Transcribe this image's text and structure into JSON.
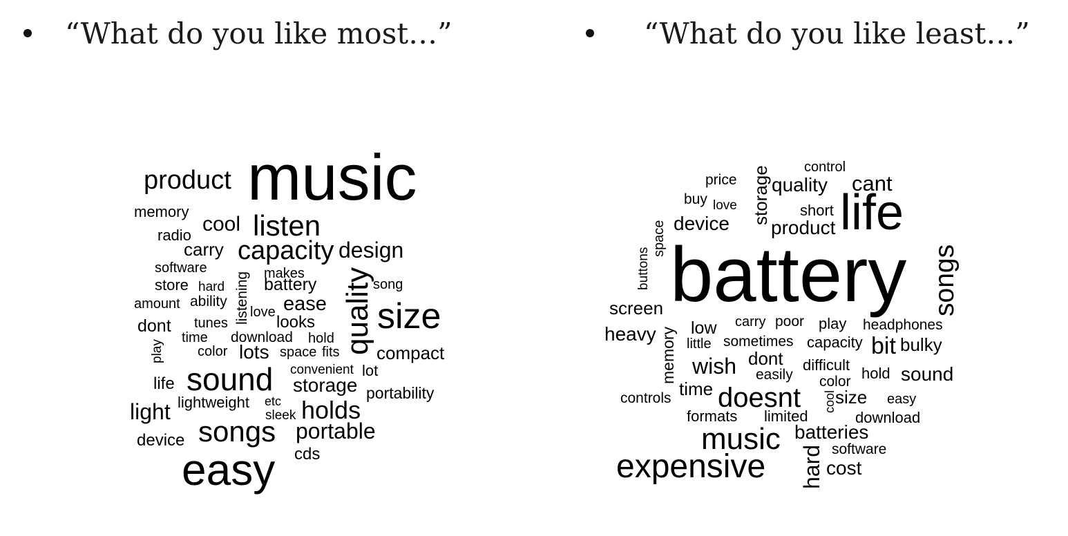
{
  "bullets": [
    {
      "text": "“What do you like most…”"
    },
    {
      "text": "“What do you like least…”"
    }
  ],
  "colors": {
    "text": "#111111",
    "cloud_text": "#000000"
  },
  "wordclouds": {
    "most": [
      {
        "word": "music"
      },
      {
        "word": "product"
      },
      {
        "word": "memory"
      },
      {
        "word": "cool"
      },
      {
        "word": "listen"
      },
      {
        "word": "radio"
      },
      {
        "word": "carry"
      },
      {
        "word": "capacity"
      },
      {
        "word": "design"
      },
      {
        "word": "software"
      },
      {
        "word": "makes"
      },
      {
        "word": "store"
      },
      {
        "word": "hard"
      },
      {
        "word": "battery"
      },
      {
        "word": "song"
      },
      {
        "word": "listening"
      },
      {
        "word": "quality"
      },
      {
        "word": "amount"
      },
      {
        "word": "ability"
      },
      {
        "word": "ease"
      },
      {
        "word": "love"
      },
      {
        "word": "size"
      },
      {
        "word": "dont"
      },
      {
        "word": "tunes"
      },
      {
        "word": "looks"
      },
      {
        "word": "time"
      },
      {
        "word": "download"
      },
      {
        "word": "hold"
      },
      {
        "word": "play"
      },
      {
        "word": "color"
      },
      {
        "word": "lots"
      },
      {
        "word": "space"
      },
      {
        "word": "fits"
      },
      {
        "word": "compact"
      },
      {
        "word": "convenient"
      },
      {
        "word": "lot"
      },
      {
        "word": "life"
      },
      {
        "word": "sound"
      },
      {
        "word": "storage"
      },
      {
        "word": "portability"
      },
      {
        "word": "light"
      },
      {
        "word": "lightweight"
      },
      {
        "word": "etc"
      },
      {
        "word": "sleek"
      },
      {
        "word": "holds"
      },
      {
        "word": "device"
      },
      {
        "word": "songs"
      },
      {
        "word": "portable"
      },
      {
        "word": "cds"
      },
      {
        "word": "easy"
      }
    ],
    "least": [
      {
        "word": "control"
      },
      {
        "word": "price"
      },
      {
        "word": "storage"
      },
      {
        "word": "quality"
      },
      {
        "word": "cant"
      },
      {
        "word": "buy"
      },
      {
        "word": "love"
      },
      {
        "word": "short"
      },
      {
        "word": "life"
      },
      {
        "word": "space"
      },
      {
        "word": "device"
      },
      {
        "word": "product"
      },
      {
        "word": "buttons"
      },
      {
        "word": "battery"
      },
      {
        "word": "songs"
      },
      {
        "word": "screen"
      },
      {
        "word": "memory"
      },
      {
        "word": "low"
      },
      {
        "word": "carry"
      },
      {
        "word": "poor"
      },
      {
        "word": "play"
      },
      {
        "word": "headphones"
      },
      {
        "word": "heavy"
      },
      {
        "word": "little"
      },
      {
        "word": "sometimes"
      },
      {
        "word": "capacity"
      },
      {
        "word": "bit"
      },
      {
        "word": "bulky"
      },
      {
        "word": "wish"
      },
      {
        "word": "dont"
      },
      {
        "word": "difficult"
      },
      {
        "word": "easily"
      },
      {
        "word": "hold"
      },
      {
        "word": "sound"
      },
      {
        "word": "color"
      },
      {
        "word": "time"
      },
      {
        "word": "controls"
      },
      {
        "word": "doesnt"
      },
      {
        "word": "cool"
      },
      {
        "word": "size"
      },
      {
        "word": "easy"
      },
      {
        "word": "formats"
      },
      {
        "word": "limited"
      },
      {
        "word": "download"
      },
      {
        "word": "music"
      },
      {
        "word": "batteries"
      },
      {
        "word": "hard"
      },
      {
        "word": "software"
      },
      {
        "word": "expensive"
      },
      {
        "word": "cost"
      }
    ]
  }
}
